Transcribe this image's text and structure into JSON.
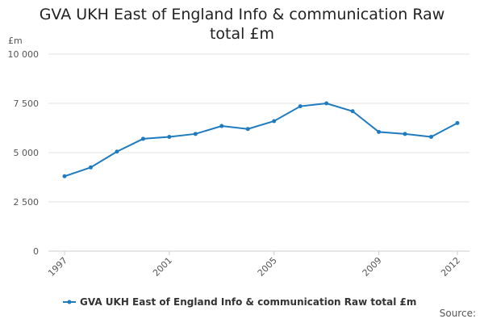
{
  "chart_data": {
    "type": "line",
    "title": "GVA UKH East of England Info & communication Raw total £m",
    "y_unit": "£m",
    "source": "Source:",
    "x": [
      1997,
      1998,
      1999,
      2000,
      2001,
      2002,
      2003,
      2004,
      2005,
      2006,
      2007,
      2008,
      2009,
      2010,
      2011,
      2012
    ],
    "xlim": [
      1997,
      2012
    ],
    "xticks": [
      1997,
      2001,
      2005,
      2009,
      2012
    ],
    "ylim": [
      0,
      10000
    ],
    "yticks": [
      {
        "value": 0,
        "label": "0"
      },
      {
        "value": 2500,
        "label": "2 500"
      },
      {
        "value": 5000,
        "label": "5 000"
      },
      {
        "value": 7500,
        "label": "7 500"
      },
      {
        "value": 10000,
        "label": "10 000"
      }
    ],
    "grid": true,
    "series": [
      {
        "name": "GVA UKH East of England Info & communication Raw total £m",
        "color": "#1f7bbf",
        "values": [
          3800,
          4250,
          5050,
          5700,
          5800,
          5950,
          6350,
          6200,
          6600,
          7350,
          7500,
          7100,
          6050,
          5950,
          5800,
          6500
        ]
      }
    ]
  }
}
